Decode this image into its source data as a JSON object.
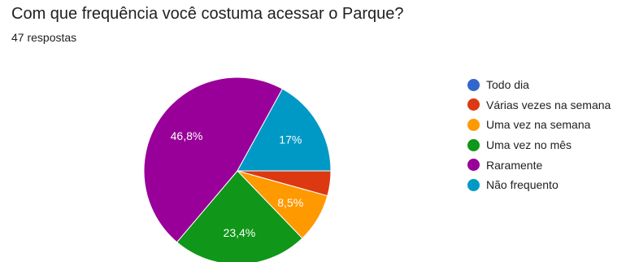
{
  "header": {
    "title": "Com que frequência você costuma acessar o Parque?",
    "responses": "47 respostas"
  },
  "chart_data": {
    "type": "pie",
    "categories": [
      "Todo dia",
      "Várias vezes na semana",
      "Uma vez na semana",
      "Uma vez no mês",
      "Raramente",
      "Não frequento"
    ],
    "values": [
      0,
      4.3,
      8.5,
      23.4,
      46.8,
      17
    ],
    "labels": [
      "",
      "",
      "8,5%",
      "23,4%",
      "46,8%",
      "17%"
    ],
    "colors": [
      "#3366cc",
      "#dc3912",
      "#ff9900",
      "#109618",
      "#990099",
      "#0099c6"
    ],
    "legend_position": "right"
  }
}
